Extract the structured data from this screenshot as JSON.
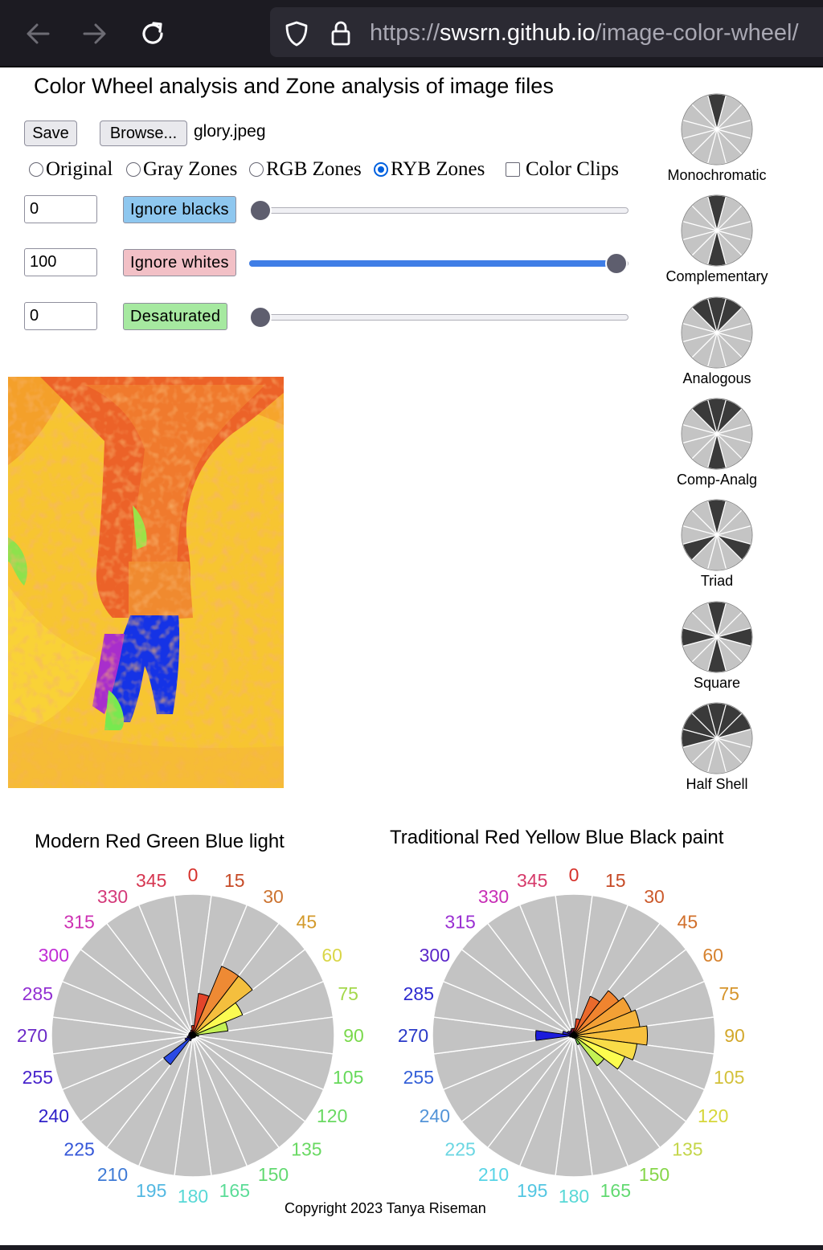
{
  "browser": {
    "url_protocol": "https://",
    "url_host": "swsrn.github.io",
    "url_path": "/image-color-wheel/"
  },
  "page": {
    "title": "Color Wheel analysis and Zone analysis of image files",
    "save_label": "Save",
    "browse_label": "Browse...",
    "file_name": "glory.jpeg",
    "modes": [
      {
        "label": "Original",
        "checked": false
      },
      {
        "label": "Gray Zones",
        "checked": false
      },
      {
        "label": "RGB Zones",
        "checked": false
      },
      {
        "label": "RYB Zones",
        "checked": true
      }
    ],
    "color_clips": {
      "label": "Color Clips",
      "checked": false
    },
    "controls": [
      {
        "value": "0",
        "label": "Ignore blacks",
        "color": "#8ec7ef",
        "slider": 0
      },
      {
        "value": "100",
        "label": "Ignore whites",
        "color": "#f2c0c6",
        "slider": 100
      },
      {
        "value": "0",
        "label": "Desaturated",
        "color": "#a6e9a0",
        "slider": 0
      }
    ],
    "harmonies": [
      {
        "label": "Monochromatic",
        "dark": [
          0
        ]
      },
      {
        "label": "Complementary",
        "dark": [
          0,
          6
        ]
      },
      {
        "label": "Analogous",
        "dark": [
          11,
          0,
          1
        ]
      },
      {
        "label": "Comp-Analg",
        "dark": [
          11,
          0,
          1,
          6
        ]
      },
      {
        "label": "Triad",
        "dark": [
          0,
          4,
          8
        ]
      },
      {
        "label": "Square",
        "dark": [
          0,
          3,
          6,
          9
        ]
      },
      {
        "label": "Half Shell",
        "dark": [
          9,
          10,
          11,
          0,
          1,
          2
        ]
      }
    ],
    "copyright": "Copyright 2023 Tanya Riseman"
  },
  "chart_data": [
    {
      "type": "polar-bar",
      "title": "Modern Red Green Blue light",
      "angle_labels": [
        "0",
        "15",
        "30",
        "45",
        "60",
        "75",
        "90",
        "105",
        "120",
        "135",
        "150",
        "165",
        "180",
        "195",
        "210",
        "225",
        "240",
        "255",
        "270",
        "285",
        "300",
        "315",
        "330",
        "345"
      ],
      "label_colors": [
        "#d6312b",
        "#c64a26",
        "#cc7330",
        "#d39a2c",
        "#d9d647",
        "#a4d84b",
        "#7ad94c",
        "#66d95a",
        "#69d962",
        "#69d962",
        "#62d971",
        "#5bdc97",
        "#58d8d6",
        "#53b8e2",
        "#3e7ad6",
        "#3456d8",
        "#3022c9",
        "#4723cc",
        "#6b2ac8",
        "#922fd2",
        "#c02cd5",
        "#cd30b3",
        "#d43a7a",
        "#d63650"
      ],
      "values": [
        0.07,
        0.3,
        0.53,
        0.53,
        0.38,
        0.25,
        0.04,
        0.02,
        0.02,
        0.01,
        0.01,
        0.01,
        0.01,
        0.02,
        0.04,
        0.26,
        0.06,
        0.04,
        0.03,
        0.03,
        0.03,
        0.03,
        0.03,
        0.04
      ],
      "bar_colors": [
        "#e33b1e",
        "#e3452b",
        "#ee8a34",
        "#f4bf3e",
        "#fbfb52",
        "#c4f154",
        "#7ee84f",
        "#4cd957",
        "#3ed97a",
        "#3bd7b7",
        "#38b6dc",
        "#3a83dc",
        "#2244d8",
        "#2f3fd8",
        "#3232d8",
        "#2a4ae4",
        "#2020cf",
        "#3b1bd0",
        "#5a22d4",
        "#8a2ad8",
        "#b22ad4",
        "#d02ab6",
        "#d63280",
        "#e23652"
      ]
    },
    {
      "type": "polar-bar",
      "title": "Traditional Red Yellow Blue Black paint",
      "angle_labels": [
        "0",
        "15",
        "30",
        "45",
        "60",
        "75",
        "90",
        "105",
        "120",
        "135",
        "150",
        "165",
        "180",
        "195",
        "210",
        "225",
        "240",
        "255",
        "270",
        "285",
        "300",
        "315",
        "330",
        "345"
      ],
      "label_colors": [
        "#d6312b",
        "#c64a26",
        "#cc5a2c",
        "#d1702c",
        "#d6822e",
        "#d6952c",
        "#d3a82b",
        "#d3c13a",
        "#d6d63a",
        "#c4d64a",
        "#86d64a",
        "#62d971",
        "#58d8d6",
        "#53c6e2",
        "#58d4e6",
        "#6ad6e2",
        "#5394d8",
        "#3460d8",
        "#2a3ac8",
        "#2e2ad0",
        "#5a26c8",
        "#9a2fd2",
        "#c72fb6",
        "#d63a6a"
      ],
      "values": [
        0.05,
        0.12,
        0.3,
        0.4,
        0.44,
        0.47,
        0.52,
        0.45,
        0.39,
        0.27,
        0.07,
        0.02,
        0.01,
        0.01,
        0.01,
        0.01,
        0.02,
        0.03,
        0.27,
        0.08,
        0.05,
        0.04,
        0.04,
        0.05
      ],
      "bar_colors": [
        "#e33b1e",
        "#e64a24",
        "#ea6a2c",
        "#f0842f",
        "#f3a035",
        "#f5b43b",
        "#f7c03e",
        "#f9dc48",
        "#fcfc4f",
        "#c4f154",
        "#7ee84f",
        "#4cd957",
        "#3ed97a",
        "#3bd7b7",
        "#38b6dc",
        "#3a83dc",
        "#2244d8",
        "#2f3fd8",
        "#1b1bdc",
        "#3328d4",
        "#5a22d4",
        "#a42ad4",
        "#c82aa8",
        "#d8307a"
      ]
    }
  ]
}
